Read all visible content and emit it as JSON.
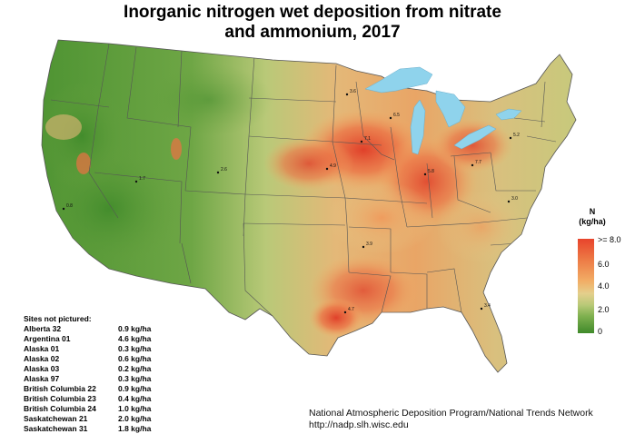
{
  "title": {
    "line1": "Inorganic nitrogen wet deposition from nitrate",
    "line2": "and ammonium, 2017"
  },
  "legend": {
    "title_line1": "N",
    "title_line2": "(kg/ha)",
    "ticks": [
      ">= 8.0",
      "6.0",
      "4.0",
      "2.0",
      "0"
    ],
    "colors": [
      "#e8442c",
      "#f2ae66",
      "#e4cf8c",
      "#7fb04f",
      "#3f8a2a"
    ]
  },
  "sites_not_pictured": {
    "heading": "Sites not pictured:",
    "rows": [
      {
        "site": "Alberta 32",
        "value": "0.9 kg/ha"
      },
      {
        "site": "Argentina 01",
        "value": "4.6 kg/ha"
      },
      {
        "site": "Alaska 01",
        "value": "0.3 kg/ha"
      },
      {
        "site": "Alaska 02",
        "value": "0.6 kg/ha"
      },
      {
        "site": "Alaska 03",
        "value": "0.2 kg/ha"
      },
      {
        "site": "Alaska 97",
        "value": "0.3 kg/ha"
      },
      {
        "site": "British Columbia 22",
        "value": "0.9 kg/ha"
      },
      {
        "site": "British Columbia 23",
        "value": "0.4 kg/ha"
      },
      {
        "site": "British Columbia 24",
        "value": "1.0 kg/ha"
      },
      {
        "site": "Saskatchewan 21",
        "value": "2.0 kg/ha"
      },
      {
        "site": "Saskatchewan 31",
        "value": "1.8 kg/ha"
      }
    ]
  },
  "credit": {
    "line1": "National Atmospheric Deposition Program/National Trends Network",
    "line2": "http://nadp.slh.wisc.edu"
  },
  "site_values": [
    "3.6",
    "7.1",
    "6.5",
    "5.8",
    "7.7",
    "4.9",
    "3.9",
    "5.2",
    "3.0",
    "1.7",
    "0.8",
    "2.6",
    "4.7",
    "3.4"
  ]
}
